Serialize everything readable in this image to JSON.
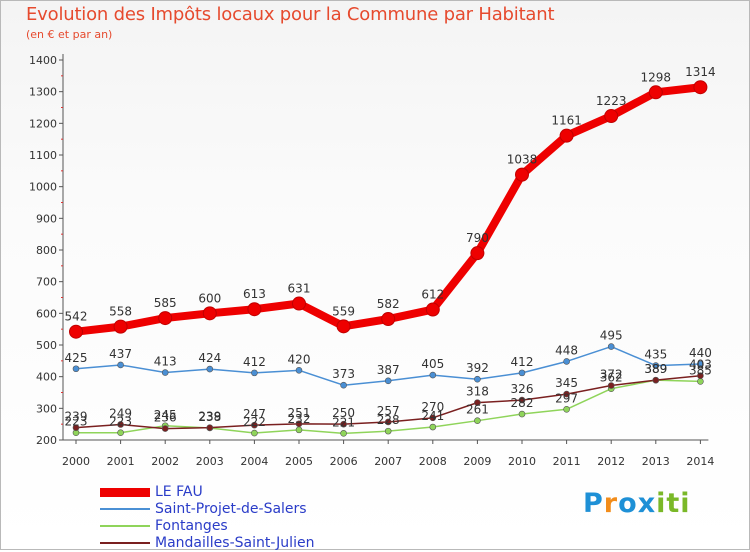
{
  "header": {
    "title": "Evolution des Impôts locaux pour la Commune par Habitant",
    "subtitle": "(en € et par an)"
  },
  "brand": {
    "name": "Proxiti",
    "letters": [
      "P",
      "r",
      "o",
      "x",
      "i",
      "t",
      "i"
    ],
    "letter_colors": [
      "#1e90d6",
      "#f28c1a",
      "#1e90d6",
      "#1e90d6",
      "#7ab828",
      "#7ab828",
      "#7ab828"
    ]
  },
  "chart_data": {
    "type": "line",
    "title": "Evolution des Impôts locaux pour la Commune par Habitant",
    "subtitle": "(en € et par an)",
    "xlabel": "",
    "ylabel": "",
    "ylim": [
      200,
      1400
    ],
    "yticks": [
      200,
      300,
      400,
      500,
      600,
      700,
      800,
      900,
      1000,
      1100,
      1200,
      1300,
      1400
    ],
    "grid": false,
    "legend_position": "bottom-left",
    "categories": [
      "2000",
      "2001",
      "2002",
      "2003",
      "2004",
      "2005",
      "2006",
      "2007",
      "2008",
      "2009",
      "2010",
      "2011",
      "2012",
      "2013",
      "2014"
    ],
    "series": [
      {
        "name": "LE FAU",
        "color": "#ee0000",
        "emphasis": true,
        "values": [
          542,
          558,
          585,
          600,
          613,
          631,
          559,
          582,
          612,
          790,
          1038,
          1161,
          1223,
          1298,
          1314
        ],
        "labels": [
          "542",
          "558",
          "585",
          "600",
          "613",
          "631",
          "559",
          "582",
          "612",
          "790",
          "1038",
          "1161",
          "1223",
          "1298",
          "1314"
        ]
      },
      {
        "name": "Saint-Projet-de-Salers",
        "color": "#4a8fd4",
        "emphasis": false,
        "values": [
          425,
          437,
          413,
          424,
          412,
          420,
          373,
          387,
          405,
          392,
          412,
          448,
          495,
          435,
          440
        ],
        "labels": [
          "425",
          "437",
          "413",
          "424",
          "412",
          "420",
          "373",
          "387",
          "405",
          "392",
          "412",
          "448",
          "495",
          "435",
          "440"
        ]
      },
      {
        "name": "Fontanges",
        "color": "#8fd45a",
        "emphasis": false,
        "values": [
          223,
          223,
          245,
          238,
          222,
          232,
          221,
          228,
          241,
          261,
          282,
          297,
          362,
          389,
          385
        ],
        "labels": [
          "223",
          "223",
          "245",
          "238",
          "222",
          "232",
          "221",
          "228",
          "241",
          "261",
          "282",
          "297",
          "362",
          "389",
          "385"
        ]
      },
      {
        "name": "Mandailles-Saint-Julien",
        "color": "#7a2020",
        "emphasis": false,
        "values": [
          239,
          249,
          236,
          239,
          247,
          251,
          250,
          257,
          270,
          318,
          326,
          345,
          372,
          389,
          403
        ],
        "labels": [
          "239",
          "249",
          "236",
          "239",
          "247",
          "251",
          "250",
          "257",
          "270",
          "318",
          "326",
          "345",
          "372",
          "389",
          "403"
        ]
      }
    ]
  }
}
